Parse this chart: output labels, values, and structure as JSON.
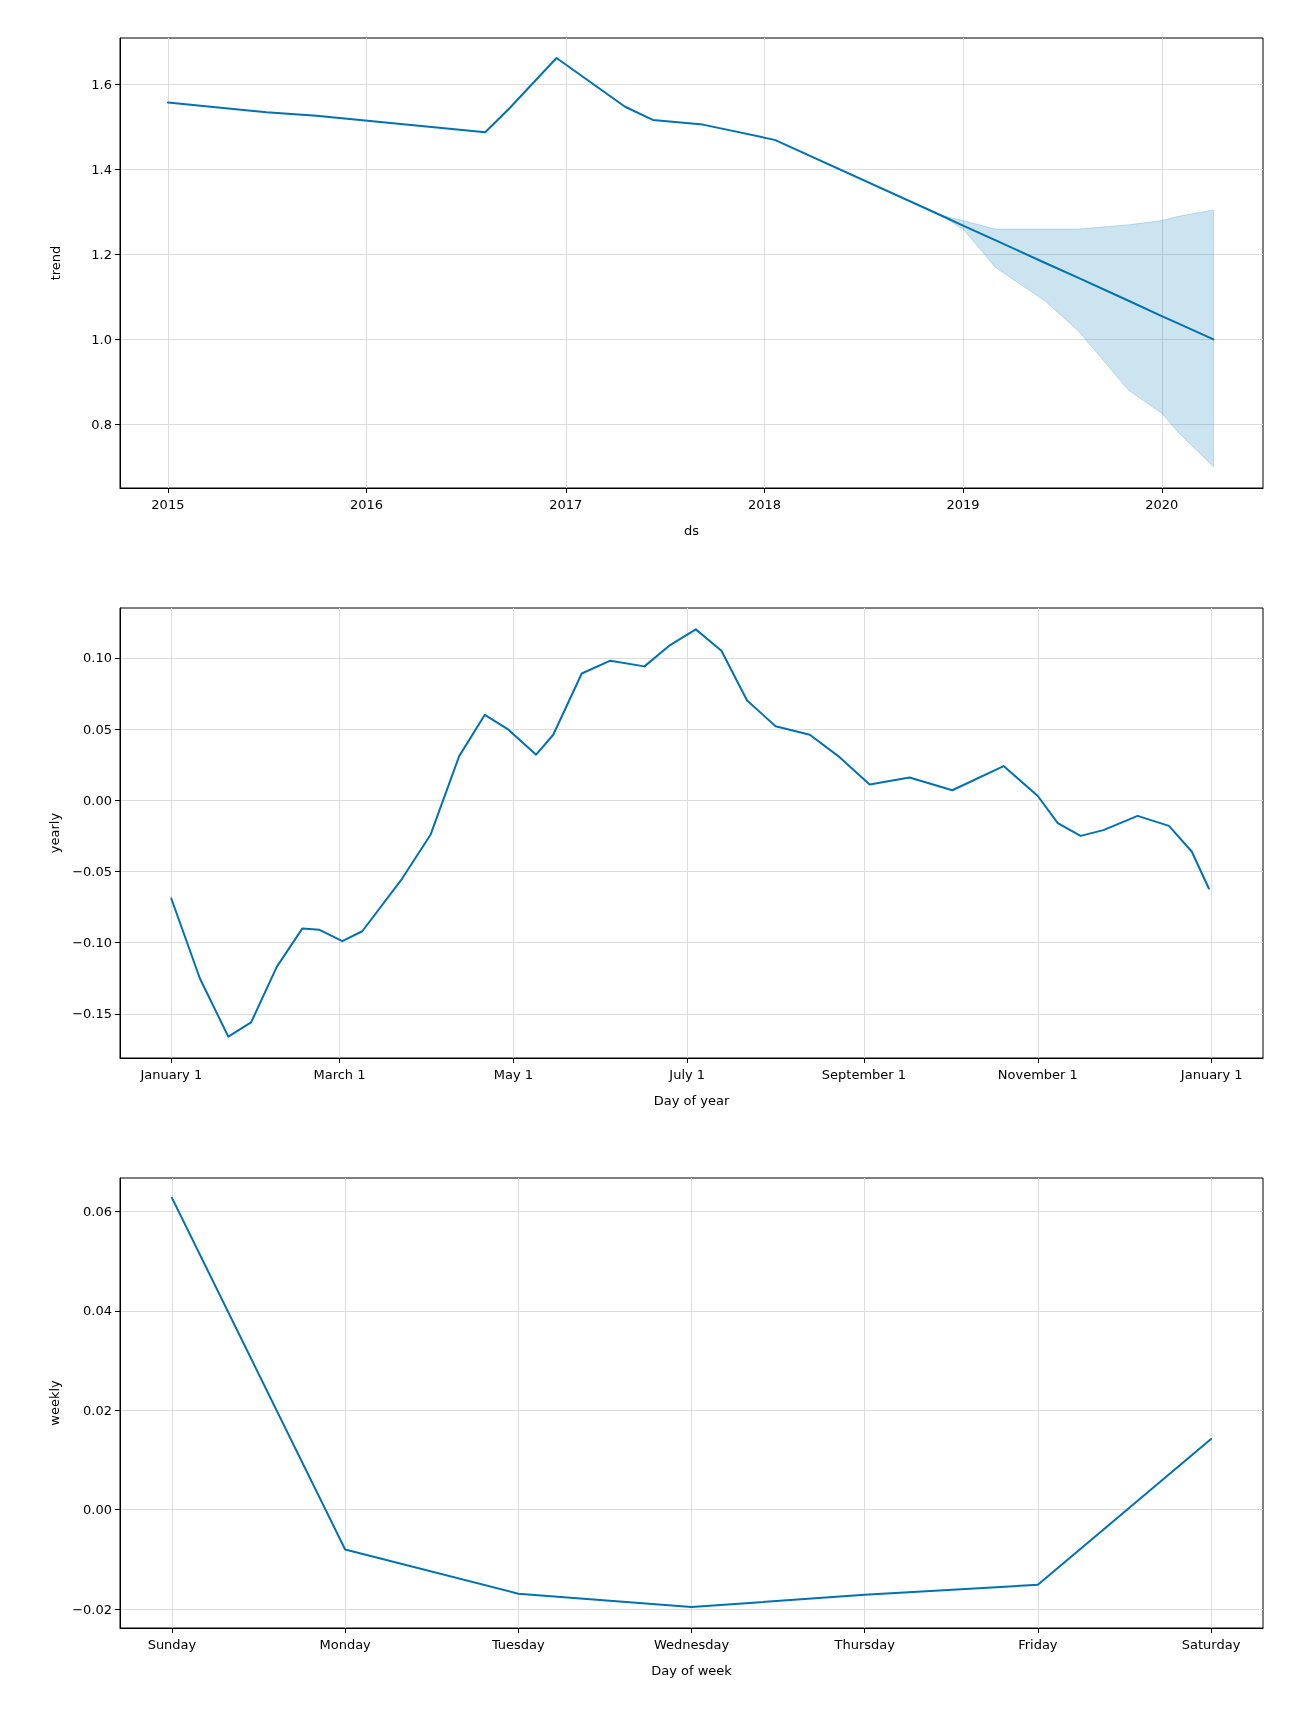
{
  "chart_data": [
    {
      "type": "line",
      "xlabel": "ds",
      "ylabel": "trend",
      "xlim": [
        "2014-10-05",
        "2020-07-05"
      ],
      "ylim": [
        0.65,
        1.71
      ],
      "xticks": [
        {
          "value": "2015",
          "label": "2015"
        },
        {
          "value": "2016",
          "label": "2016"
        },
        {
          "value": "2017",
          "label": "2017"
        },
        {
          "value": "2018",
          "label": "2018"
        },
        {
          "value": "2019",
          "label": "2019"
        },
        {
          "value": "2020",
          "label": "2020"
        }
      ],
      "yticks": [
        {
          "value": 0.8,
          "label": "0.8"
        },
        {
          "value": 1,
          "label": "1.0"
        },
        {
          "value": 1.2,
          "label": "1.2"
        },
        {
          "value": 1.4,
          "label": "1.4"
        },
        {
          "value": 1.6,
          "label": "1.6"
        }
      ],
      "grid": true,
      "marker": "none",
      "series": [
        {
          "color": "#0072b2",
          "x": [
            "2015-01-01",
            "2015-07-01",
            "2015-10-01",
            "2016-08-06",
            "2016-09-20",
            "2016-12-15",
            "2017-04-20",
            "2017-06-10",
            "2017-09-10",
            "2018-01-20",
            "2018-11-20",
            "2019-01-01",
            "2019-03-01",
            "2019-06-01",
            "2019-08-01",
            "2019-11-01",
            "2020-01-01",
            "2020-02-01",
            "2020-04-05"
          ],
          "values": [
            1.558,
            1.535,
            1.527,
            1.488,
            1.545,
            1.663,
            1.548,
            1.517,
            1.506,
            1.47,
            1.293,
            1.268,
            1.234,
            1.18,
            1.145,
            1.091,
            1.055,
            1.037,
            1.0
          ],
          "lower": [
            null,
            null,
            null,
            null,
            null,
            null,
            null,
            null,
            null,
            null,
            1.293,
            1.26,
            1.17,
            1.09,
            1.02,
            0.88,
            0.826,
            0.78,
            0.7
          ],
          "upper": [
            null,
            null,
            null,
            null,
            null,
            null,
            null,
            null,
            null,
            null,
            1.293,
            1.28,
            1.26,
            1.26,
            1.26,
            1.27,
            1.28,
            1.29,
            1.305
          ]
        }
      ]
    },
    {
      "type": "line",
      "xlabel": "Day of year",
      "ylabel": "yearly",
      "xlim": [
        "2016-12-14",
        "2018-01-19"
      ],
      "ylim": [
        -0.181,
        0.135
      ],
      "xticks": [
        {
          "value": "2017-01-01",
          "label": "January 1"
        },
        {
          "value": "2017-03-01",
          "label": "March 1"
        },
        {
          "value": "2017-05-01",
          "label": "May 1"
        },
        {
          "value": "2017-07-01",
          "label": "July 1"
        },
        {
          "value": "2017-09-01",
          "label": "September 1"
        },
        {
          "value": "2017-11-01",
          "label": "November 1"
        },
        {
          "value": "2018-01-01",
          "label": "January 1"
        }
      ],
      "yticks": [
        {
          "value": -0.15,
          "label": "−0.15"
        },
        {
          "value": -0.1,
          "label": "−0.10"
        },
        {
          "value": -0.05,
          "label": "−0.05"
        },
        {
          "value": 0,
          "label": "0.00"
        },
        {
          "value": 0.05,
          "label": "0.05"
        },
        {
          "value": 0.1,
          "label": "0.10"
        }
      ],
      "grid": true,
      "marker": "none",
      "series": [
        {
          "color": "#0072b2",
          "x": [
            "2017-01-01",
            "2017-01-11",
            "2017-01-21",
            "2017-01-29",
            "2017-02-07",
            "2017-02-16",
            "2017-02-22",
            "2017-03-02",
            "2017-03-09",
            "2017-03-23",
            "2017-04-02",
            "2017-04-12",
            "2017-04-21",
            "2017-04-29",
            "2017-05-09",
            "2017-05-15",
            "2017-05-25",
            "2017-06-04",
            "2017-06-16",
            "2017-06-25",
            "2017-07-04",
            "2017-07-13",
            "2017-07-22",
            "2017-08-01",
            "2017-08-13",
            "2017-08-23",
            "2017-09-03",
            "2017-09-17",
            "2017-10-02",
            "2017-10-20",
            "2017-11-01",
            "2017-11-08",
            "2017-11-16",
            "2017-11-24",
            "2017-12-06",
            "2017-12-17",
            "2017-12-25",
            "2017-12-31"
          ],
          "values": [
            -0.069,
            -0.125,
            -0.166,
            -0.156,
            -0.117,
            -0.09,
            -0.091,
            -0.099,
            -0.092,
            -0.055,
            -0.024,
            0.031,
            0.06,
            0.05,
            0.032,
            0.046,
            0.089,
            0.098,
            0.094,
            0.109,
            0.12,
            0.105,
            0.07,
            0.052,
            0.046,
            0.031,
            0.011,
            0.016,
            0.007,
            0.024,
            0.003,
            -0.016,
            -0.025,
            -0.021,
            -0.011,
            -0.018,
            -0.036,
            -0.062
          ]
        }
      ]
    },
    {
      "type": "line",
      "xlabel": "Day of week",
      "ylabel": "weekly",
      "ylim": [
        -0.0238,
        0.0667
      ],
      "categories": [
        "Sunday",
        "Monday",
        "Tuesday",
        "Wednesday",
        "Thursday",
        "Friday",
        "Saturday"
      ],
      "yticks": [
        {
          "value": -0.02,
          "label": "−0.02"
        },
        {
          "value": 0,
          "label": "0.00"
        },
        {
          "value": 0.02,
          "label": "0.02"
        },
        {
          "value": 0.04,
          "label": "0.04"
        },
        {
          "value": 0.06,
          "label": "0.06"
        }
      ],
      "grid": true,
      "marker": "none",
      "series": [
        {
          "color": "#0072b2",
          "values": [
            0.0627,
            -0.008,
            -0.0169,
            -0.0196,
            -0.0171,
            -0.0151,
            0.0142
          ]
        }
      ]
    }
  ]
}
